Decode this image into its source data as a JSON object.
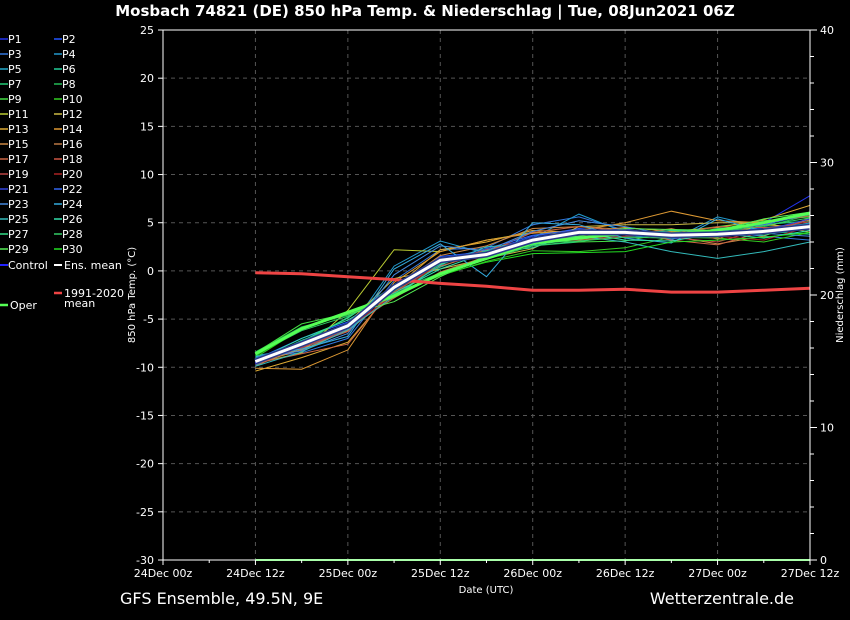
{
  "title": "Mosbach 74821 (DE)  850 hPa Temp. & Niederschlag | Tue, 08Jun2021 06Z",
  "footer": {
    "left": "GFS Ensemble, 49.5N, 9E",
    "right": "Wetterzentrale.de"
  },
  "chart_data": {
    "type": "line",
    "xlabel": "Date (UTC)",
    "ylabel": "850 hPa Temp. (°C)",
    "y2label": "Niederschlag (mm)",
    "ylim": [
      -30,
      25
    ],
    "y2lim": [
      0,
      40
    ],
    "yticks": [
      25,
      20,
      15,
      10,
      5,
      0,
      -5,
      -10,
      -15,
      -20,
      -25,
      -30
    ],
    "y2ticks": [
      40,
      30,
      20,
      10,
      0
    ],
    "xtick_labels": [
      "24Dec 00z",
      "24Dec 12z",
      "25Dec 00z",
      "25Dec 12z",
      "26Dec 00z",
      "26Dec 12z",
      "27Dec 00z",
      "27Dec 12z"
    ],
    "x_hours": [
      12,
      18,
      24,
      30,
      36,
      42,
      48,
      54,
      60,
      66,
      72,
      78,
      84
    ],
    "legend": [
      {
        "name": "P1",
        "color": "#2233ee"
      },
      {
        "name": "P2",
        "color": "#2255ff"
      },
      {
        "name": "P3",
        "color": "#3377dd"
      },
      {
        "name": "P4",
        "color": "#2299cc"
      },
      {
        "name": "P5",
        "color": "#22aacc"
      },
      {
        "name": "P6",
        "color": "#22cc99"
      },
      {
        "name": "P7",
        "color": "#22cc77"
      },
      {
        "name": "P8",
        "color": "#22bb55"
      },
      {
        "name": "P9",
        "color": "#44dd44"
      },
      {
        "name": "P10",
        "color": "#33cc22"
      },
      {
        "name": "P11",
        "color": "#bbcc33"
      },
      {
        "name": "P12",
        "color": "#ccbb44"
      },
      {
        "name": "P13",
        "color": "#ddaa33"
      },
      {
        "name": "P14",
        "color": "#dd9933"
      },
      {
        "name": "P15",
        "color": "#cc8844"
      },
      {
        "name": "P16",
        "color": "#bb7744"
      },
      {
        "name": "P17",
        "color": "#cc6644"
      },
      {
        "name": "P18",
        "color": "#cc5544"
      },
      {
        "name": "P19",
        "color": "#bb4444"
      },
      {
        "name": "P20",
        "color": "#aa2222"
      },
      {
        "name": "P21",
        "color": "#3344dd"
      },
      {
        "name": "P22",
        "color": "#3366ee"
      },
      {
        "name": "P23",
        "color": "#4488dd"
      },
      {
        "name": "P24",
        "color": "#33aadd"
      },
      {
        "name": "P25",
        "color": "#33bbbb"
      },
      {
        "name": "P26",
        "color": "#33ddaa"
      },
      {
        "name": "P27",
        "color": "#33dd88"
      },
      {
        "name": "P28",
        "color": "#33cc66"
      },
      {
        "name": "P29",
        "color": "#55ee55"
      },
      {
        "name": "P30",
        "color": "#22dd22"
      },
      {
        "name": "Control",
        "color": "#2222ff"
      },
      {
        "name": "Ens. mean",
        "color": "#ffffff"
      },
      {
        "name": "1991-2020 mean",
        "color": "#ee4444"
      },
      {
        "name": "Oper",
        "color": "#55ff55"
      }
    ],
    "series": [
      {
        "name": "P1",
        "values": [
          -9.5,
          -7.8,
          -5.7,
          -2.0,
          1.0,
          1.8,
          3.2,
          4.2,
          4.3,
          3.5,
          3.8,
          5.0,
          7.8
        ]
      },
      {
        "name": "P2",
        "values": [
          -9.2,
          -7.0,
          -5.3,
          -1.5,
          1.5,
          2.0,
          3.6,
          4.4,
          4.0,
          3.3,
          3.9,
          4.5,
          4.6
        ]
      },
      {
        "name": "P3",
        "values": [
          -9.0,
          -8.5,
          -7.0,
          -1.0,
          2.2,
          2.4,
          4.8,
          5.6,
          4.2,
          4.0,
          4.1,
          3.6,
          3.2
        ]
      },
      {
        "name": "P4",
        "values": [
          -8.8,
          -8.0,
          -6.3,
          0.5,
          3.1,
          1.8,
          3.4,
          5.9,
          4.0,
          3.2,
          5.6,
          4.5,
          4.9
        ]
      },
      {
        "name": "P5",
        "values": [
          -9.8,
          -8.0,
          -6.0,
          -2.0,
          0.8,
          2.0,
          3.3,
          4.0,
          3.5,
          3.7,
          4.2,
          3.9,
          5.0
        ]
      },
      {
        "name": "P6",
        "values": [
          -9.5,
          -7.2,
          -5.5,
          -2.1,
          0.4,
          2.2,
          3.0,
          3.8,
          4.0,
          3.6,
          3.8,
          4.1,
          3.8
        ]
      },
      {
        "name": "P7",
        "values": [
          -9.7,
          -7.5,
          -4.8,
          -1.5,
          1.2,
          1.9,
          2.6,
          3.0,
          3.9,
          3.5,
          4.4,
          4.8,
          5.2
        ]
      },
      {
        "name": "P8",
        "values": [
          -8.4,
          -5.8,
          -4.6,
          -2.1,
          -0.2,
          1.5,
          3.0,
          3.4,
          4.3,
          3.6,
          4.0,
          4.6,
          5.8
        ]
      },
      {
        "name": "P9",
        "values": [
          -8.5,
          -5.5,
          -4.4,
          -2.8,
          0.8,
          2.0,
          3.2,
          3.0,
          3.1,
          4.0,
          4.6,
          5.2,
          5.6
        ]
      },
      {
        "name": "P10",
        "values": [
          -9.0,
          -6.0,
          -4.3,
          -2.5,
          -0.5,
          1.0,
          2.1,
          2.0,
          2.4,
          3.5,
          3.4,
          3.0,
          4.0
        ]
      },
      {
        "name": "P11",
        "values": [
          -9.6,
          -8.5,
          -4.1,
          2.2,
          2.0,
          3.2,
          4.0,
          3.8,
          3.8,
          4.0,
          3.5,
          4.8,
          4.5
        ]
      },
      {
        "name": "P12",
        "values": [
          -9.3,
          -8.2,
          -5.4,
          -0.8,
          0.2,
          1.3,
          2.3,
          4.6,
          4.8,
          4.8,
          5.0,
          5.0,
          4.0
        ]
      },
      {
        "name": "P13",
        "values": [
          -10.4,
          -9.0,
          -7.4,
          -1.8,
          2.2,
          3.0,
          4.2,
          4.0,
          4.5,
          4.1,
          4.5,
          5.3,
          6.8
        ]
      },
      {
        "name": "P14",
        "values": [
          -10.1,
          -10.2,
          -8.2,
          -1.2,
          2.0,
          3.2,
          3.9,
          4.2,
          5.0,
          6.2,
          5.2,
          5.0,
          6.0
        ]
      },
      {
        "name": "P15",
        "values": [
          -9.6,
          -8.2,
          -6.2,
          -1.8,
          1.6,
          2.6,
          4.4,
          4.6,
          4.3,
          3.6,
          2.8,
          3.6,
          5.5
        ]
      },
      {
        "name": "P16",
        "values": [
          -9.9,
          -7.7,
          -5.9,
          -2.8,
          -0.1,
          1.5,
          3.1,
          3.2,
          3.6,
          4.4,
          3.3,
          5.1,
          5.7
        ]
      },
      {
        "name": "P17",
        "values": [
          -9.6,
          -8.6,
          -7.6,
          -1.7,
          0.5,
          1.9,
          4.0,
          4.6,
          4.1,
          3.2,
          2.7,
          4.1,
          5.3
        ]
      },
      {
        "name": "P18",
        "values": [
          -9.7,
          -7.9,
          -6.3,
          -2.2,
          0.8,
          2.2,
          3.3,
          3.5,
          3.9,
          3.8,
          4.6,
          4.5,
          4.3
        ]
      },
      {
        "name": "P19",
        "values": [
          -9.4,
          -8.0,
          -6.1,
          -2.4,
          1.2,
          1.6,
          2.9,
          3.6,
          4.2,
          3.5,
          3.0,
          4.4,
          5.1
        ]
      },
      {
        "name": "P20",
        "values": [
          -9.2,
          -7.5,
          -5.8,
          -2.6,
          0.9,
          1.4,
          3.4,
          3.3,
          3.6,
          3.9,
          3.6,
          3.2,
          4.6
        ]
      },
      {
        "name": "P21",
        "values": [
          -9.6,
          -7.6,
          -5.6,
          -1.8,
          1.3,
          1.7,
          3.1,
          3.9,
          4.4,
          3.4,
          3.7,
          4.2,
          5.4
        ]
      },
      {
        "name": "P22",
        "values": [
          -9.4,
          -7.4,
          -5.5,
          -1.4,
          1.1,
          2.3,
          3.7,
          4.3,
          4.1,
          3.8,
          4.3,
          4.8,
          5.9
        ]
      },
      {
        "name": "P23",
        "values": [
          -9.1,
          -8.3,
          -6.5,
          -0.4,
          2.6,
          2.1,
          4.1,
          5.2,
          4.6,
          3.7,
          4.2,
          3.9,
          3.6
        ]
      },
      {
        "name": "P24",
        "values": [
          -8.9,
          -8.1,
          -6.8,
          0.2,
          2.8,
          -0.6,
          5.0,
          4.8,
          3.4,
          2.9,
          5.4,
          4.1,
          4.4
        ]
      },
      {
        "name": "P25",
        "values": [
          -9.9,
          -8.4,
          -6.1,
          -2.6,
          0.6,
          2.5,
          2.8,
          3.6,
          3.0,
          2.0,
          1.3,
          2.0,
          3.0
        ]
      },
      {
        "name": "P26",
        "values": [
          -9.3,
          -7.0,
          -5.1,
          -2.3,
          0.2,
          1.9,
          2.4,
          4.0,
          3.2,
          3.1,
          3.9,
          3.4,
          4.2
        ]
      },
      {
        "name": "P27",
        "values": [
          -9.5,
          -7.3,
          -4.9,
          -1.7,
          0.7,
          2.1,
          2.7,
          3.3,
          3.8,
          4.2,
          4.1,
          3.7,
          4.8
        ]
      },
      {
        "name": "P28",
        "values": [
          -8.7,
          -6.2,
          -4.7,
          -2.4,
          -0.3,
          1.2,
          2.6,
          3.1,
          3.5,
          3.4,
          4.1,
          4.7,
          5.5
        ]
      },
      {
        "name": "P29",
        "values": [
          -8.6,
          -5.9,
          -4.5,
          -3.2,
          -0.6,
          1.6,
          3.4,
          3.6,
          4.4,
          4.3,
          4.2,
          5.4,
          6.1
        ]
      },
      {
        "name": "P30",
        "values": [
          -8.8,
          -6.1,
          -4.4,
          -2.7,
          -0.4,
          0.9,
          1.8,
          1.9,
          2.0,
          3.0,
          3.2,
          3.5,
          4.0
        ]
      },
      {
        "name": "Control",
        "values": [
          -9.6,
          -7.7,
          -5.6,
          -1.9,
          1.0,
          1.6,
          3.0,
          3.9,
          4.0,
          3.7,
          4.0,
          4.2,
          4.5
        ]
      },
      {
        "name": "Oper",
        "values": [
          -8.6,
          -6.0,
          -4.3,
          -2.6,
          -0.3,
          1.3,
          2.9,
          3.4,
          3.9,
          3.8,
          4.2,
          5.0,
          6.0
        ]
      },
      {
        "name": "Ens. mean",
        "values": [
          -9.4,
          -7.6,
          -5.7,
          -1.7,
          1.1,
          1.7,
          3.2,
          4.0,
          4.0,
          3.7,
          3.8,
          4.1,
          4.6
        ]
      },
      {
        "name": "1991-2020 mean",
        "values": [
          -0.2,
          -0.3,
          -0.6,
          -0.9,
          -1.3,
          -1.6,
          -2.0,
          -2.0,
          -1.9,
          -2.2,
          -2.2,
          -2.0,
          -1.8
        ]
      }
    ],
    "precipitation": {
      "name": "Oper",
      "axis": "y2",
      "values": [
        0,
        0,
        0,
        0,
        0,
        0,
        0,
        0,
        0,
        0,
        0,
        0,
        0
      ]
    }
  }
}
